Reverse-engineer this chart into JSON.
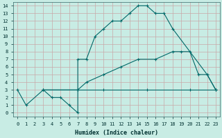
{
  "xlabel": "Humidex (Indice chaleur)",
  "bg_color": "#c8ece4",
  "grid_color": "#c8a8a8",
  "line_color": "#006868",
  "xlim": [
    -0.5,
    23.5
  ],
  "ylim": [
    -0.5,
    14.5
  ],
  "xticks": [
    0,
    1,
    2,
    3,
    4,
    5,
    6,
    7,
    8,
    9,
    10,
    11,
    12,
    13,
    14,
    15,
    16,
    17,
    18,
    19,
    20,
    21,
    22,
    23
  ],
  "yticks": [
    0,
    1,
    2,
    3,
    4,
    5,
    6,
    7,
    8,
    9,
    10,
    11,
    12,
    13,
    14
  ],
  "series": [
    {
      "x": [
        0,
        1,
        3,
        4,
        5,
        6,
        7,
        7,
        8,
        9,
        10,
        11,
        12,
        13,
        14,
        15,
        16,
        17,
        18,
        22,
        23
      ],
      "y": [
        3,
        1,
        3,
        2,
        2,
        1,
        0,
        7,
        7,
        10,
        11,
        12,
        12,
        13,
        14,
        14,
        13,
        13,
        11,
        5,
        3
      ]
    },
    {
      "x": [
        3,
        7,
        8,
        10,
        12,
        14,
        16,
        18,
        19,
        20,
        21,
        22,
        23
      ],
      "y": [
        3,
        3,
        4,
        5,
        6,
        7,
        7,
        8,
        8,
        8,
        5,
        5,
        3
      ]
    },
    {
      "x": [
        3,
        7,
        10,
        15,
        20,
        23
      ],
      "y": [
        3,
        3,
        3,
        3,
        3,
        3
      ]
    }
  ]
}
